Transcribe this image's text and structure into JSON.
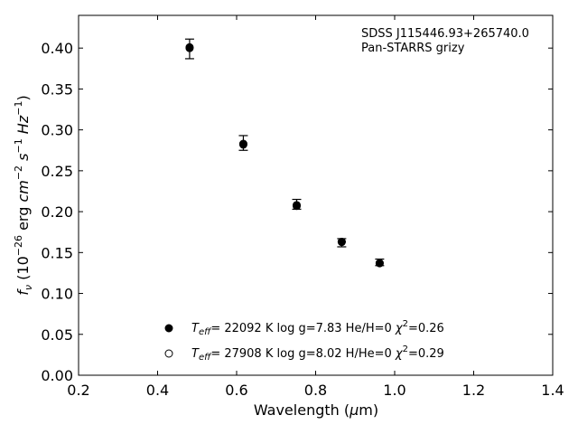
{
  "chart_data": {
    "type": "scatter",
    "xlabel": "Wavelength (μm)",
    "ylabel": "f_ν (10^-26 erg cm^-2 s^-1 Hz^-1)",
    "xlim": [
      0.2,
      1.4
    ],
    "ylim": [
      0.0,
      0.44
    ],
    "x_ticks": [
      0.2,
      0.4,
      0.6,
      0.8,
      1.0,
      1.2,
      1.4
    ],
    "y_ticks": [
      0.0,
      0.05,
      0.1,
      0.15,
      0.2,
      0.25,
      0.3,
      0.35,
      0.4
    ],
    "x_tick_labels": [
      "0.2",
      "0.4",
      "0.6",
      "0.8",
      "1.0",
      "1.2",
      "1.4"
    ],
    "y_tick_labels": [
      "0.00",
      "0.05",
      "0.10",
      "0.15",
      "0.20",
      "0.25",
      "0.30",
      "0.35",
      "0.40"
    ],
    "grid": false,
    "observed": {
      "x": [
        0.481,
        0.617,
        0.752,
        0.866,
        0.962
      ],
      "y": [
        0.399,
        0.284,
        0.209,
        0.162,
        0.138
      ],
      "yerr": [
        0.012,
        0.009,
        0.006,
        0.005,
        0.004
      ]
    },
    "series": [
      {
        "label_parts": {
          "T": "T",
          "sub": "eff",
          "rest": "= 22092 K  log g=7.83  He/H=0  ",
          "chi": "χ",
          "sup": "2",
          "chi_rest": "=0.26"
        },
        "marker": "filled",
        "x": [
          0.481,
          0.617,
          0.752,
          0.866,
          0.962
        ],
        "y": [
          0.401,
          0.282,
          0.207,
          0.163,
          0.137
        ]
      },
      {
        "label_parts": {
          "T": "T",
          "sub": "eff",
          "rest": "= 27908 K  log g=8.02  H/He=0  ",
          "chi": "χ",
          "sup": "2",
          "chi_rest": "=0.29"
        },
        "marker": "open",
        "x": [
          0.481,
          0.617,
          0.752,
          0.866,
          0.962
        ],
        "y": [
          0.4,
          0.283,
          0.208,
          0.163,
          0.137
        ]
      }
    ],
    "annotations": [
      "SDSS J115446.93+265740.0",
      "Pan-STARRS grizy"
    ],
    "legend_placement": "lower-center",
    "colors": {
      "axis": "#000000",
      "marker": "#000000",
      "background": "#ffffff"
    }
  }
}
